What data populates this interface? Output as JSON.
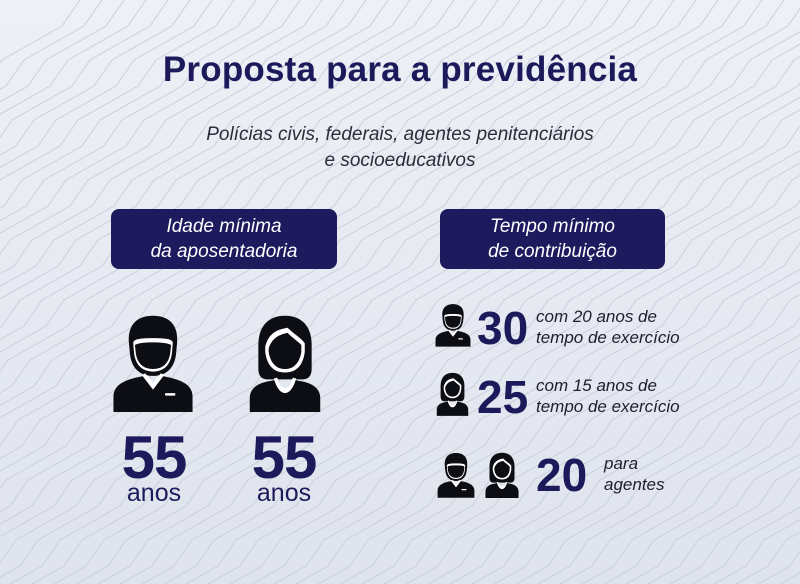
{
  "title": "Proposta para a previdência",
  "subtitle": {
    "line1": "Polícias civis, federais, agentes penitenciários",
    "line2": "e socioeducativos"
  },
  "left_panel": {
    "header_line1": "Idade mínima",
    "header_line2": "da aposentadoria",
    "men": {
      "icon": "man-icon",
      "value": "55",
      "unit": "anos"
    },
    "women": {
      "icon": "woman-icon",
      "value": "55",
      "unit": "anos"
    }
  },
  "right_panel": {
    "header_line1": "Tempo mínimo",
    "header_line2": "de contribuição",
    "rows": [
      {
        "icons": [
          "man-icon"
        ],
        "value": "30",
        "desc_line1": "com 20 anos de",
        "desc_line2": "tempo de exercício"
      },
      {
        "icons": [
          "woman-icon"
        ],
        "value": "25",
        "desc_line1": "com 15 anos de",
        "desc_line2": "tempo de exercício"
      },
      {
        "icons": [
          "man-icon",
          "woman-icon"
        ],
        "value": "20",
        "desc_line1": "para",
        "desc_line2": "agentes"
      }
    ]
  },
  "colors": {
    "navy": "#1d1a5c",
    "pill": "#1e1a5e",
    "icon": "#0d0d14",
    "background": "#e8ebf2"
  }
}
